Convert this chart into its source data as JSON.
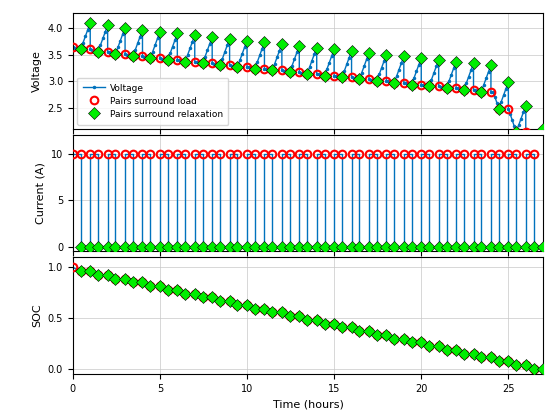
{
  "axes": [
    {
      "ylabel": "Voltage",
      "ylim": [
        2.1,
        4.3
      ],
      "yticks": [
        2.5,
        3.0,
        3.5,
        4.0
      ]
    },
    {
      "ylabel": "Current (A)",
      "ylim": [
        -0.5,
        12
      ],
      "yticks": [
        0,
        5,
        10
      ]
    },
    {
      "ylabel": "SOC",
      "xlabel": "Time (hours)",
      "ylim": [
        -0.05,
        1.1
      ],
      "yticks": [
        0.0,
        0.5,
        1.0
      ]
    }
  ],
  "xlim": [
    0,
    27
  ],
  "xticks": [
    0,
    5,
    10,
    15,
    20,
    25
  ],
  "n_cycles": 27,
  "cycle_load_dur": 0.45,
  "cycle_relax_dur": 0.55,
  "load_current": 10.0,
  "line_color": "#0072BD",
  "marker_load_color": "red",
  "marker_relax_color": "#00EE00",
  "grid_color": "#C8C8C8",
  "background_color": "white",
  "legend_loc": "lower left",
  "legend_fontsize": 7
}
